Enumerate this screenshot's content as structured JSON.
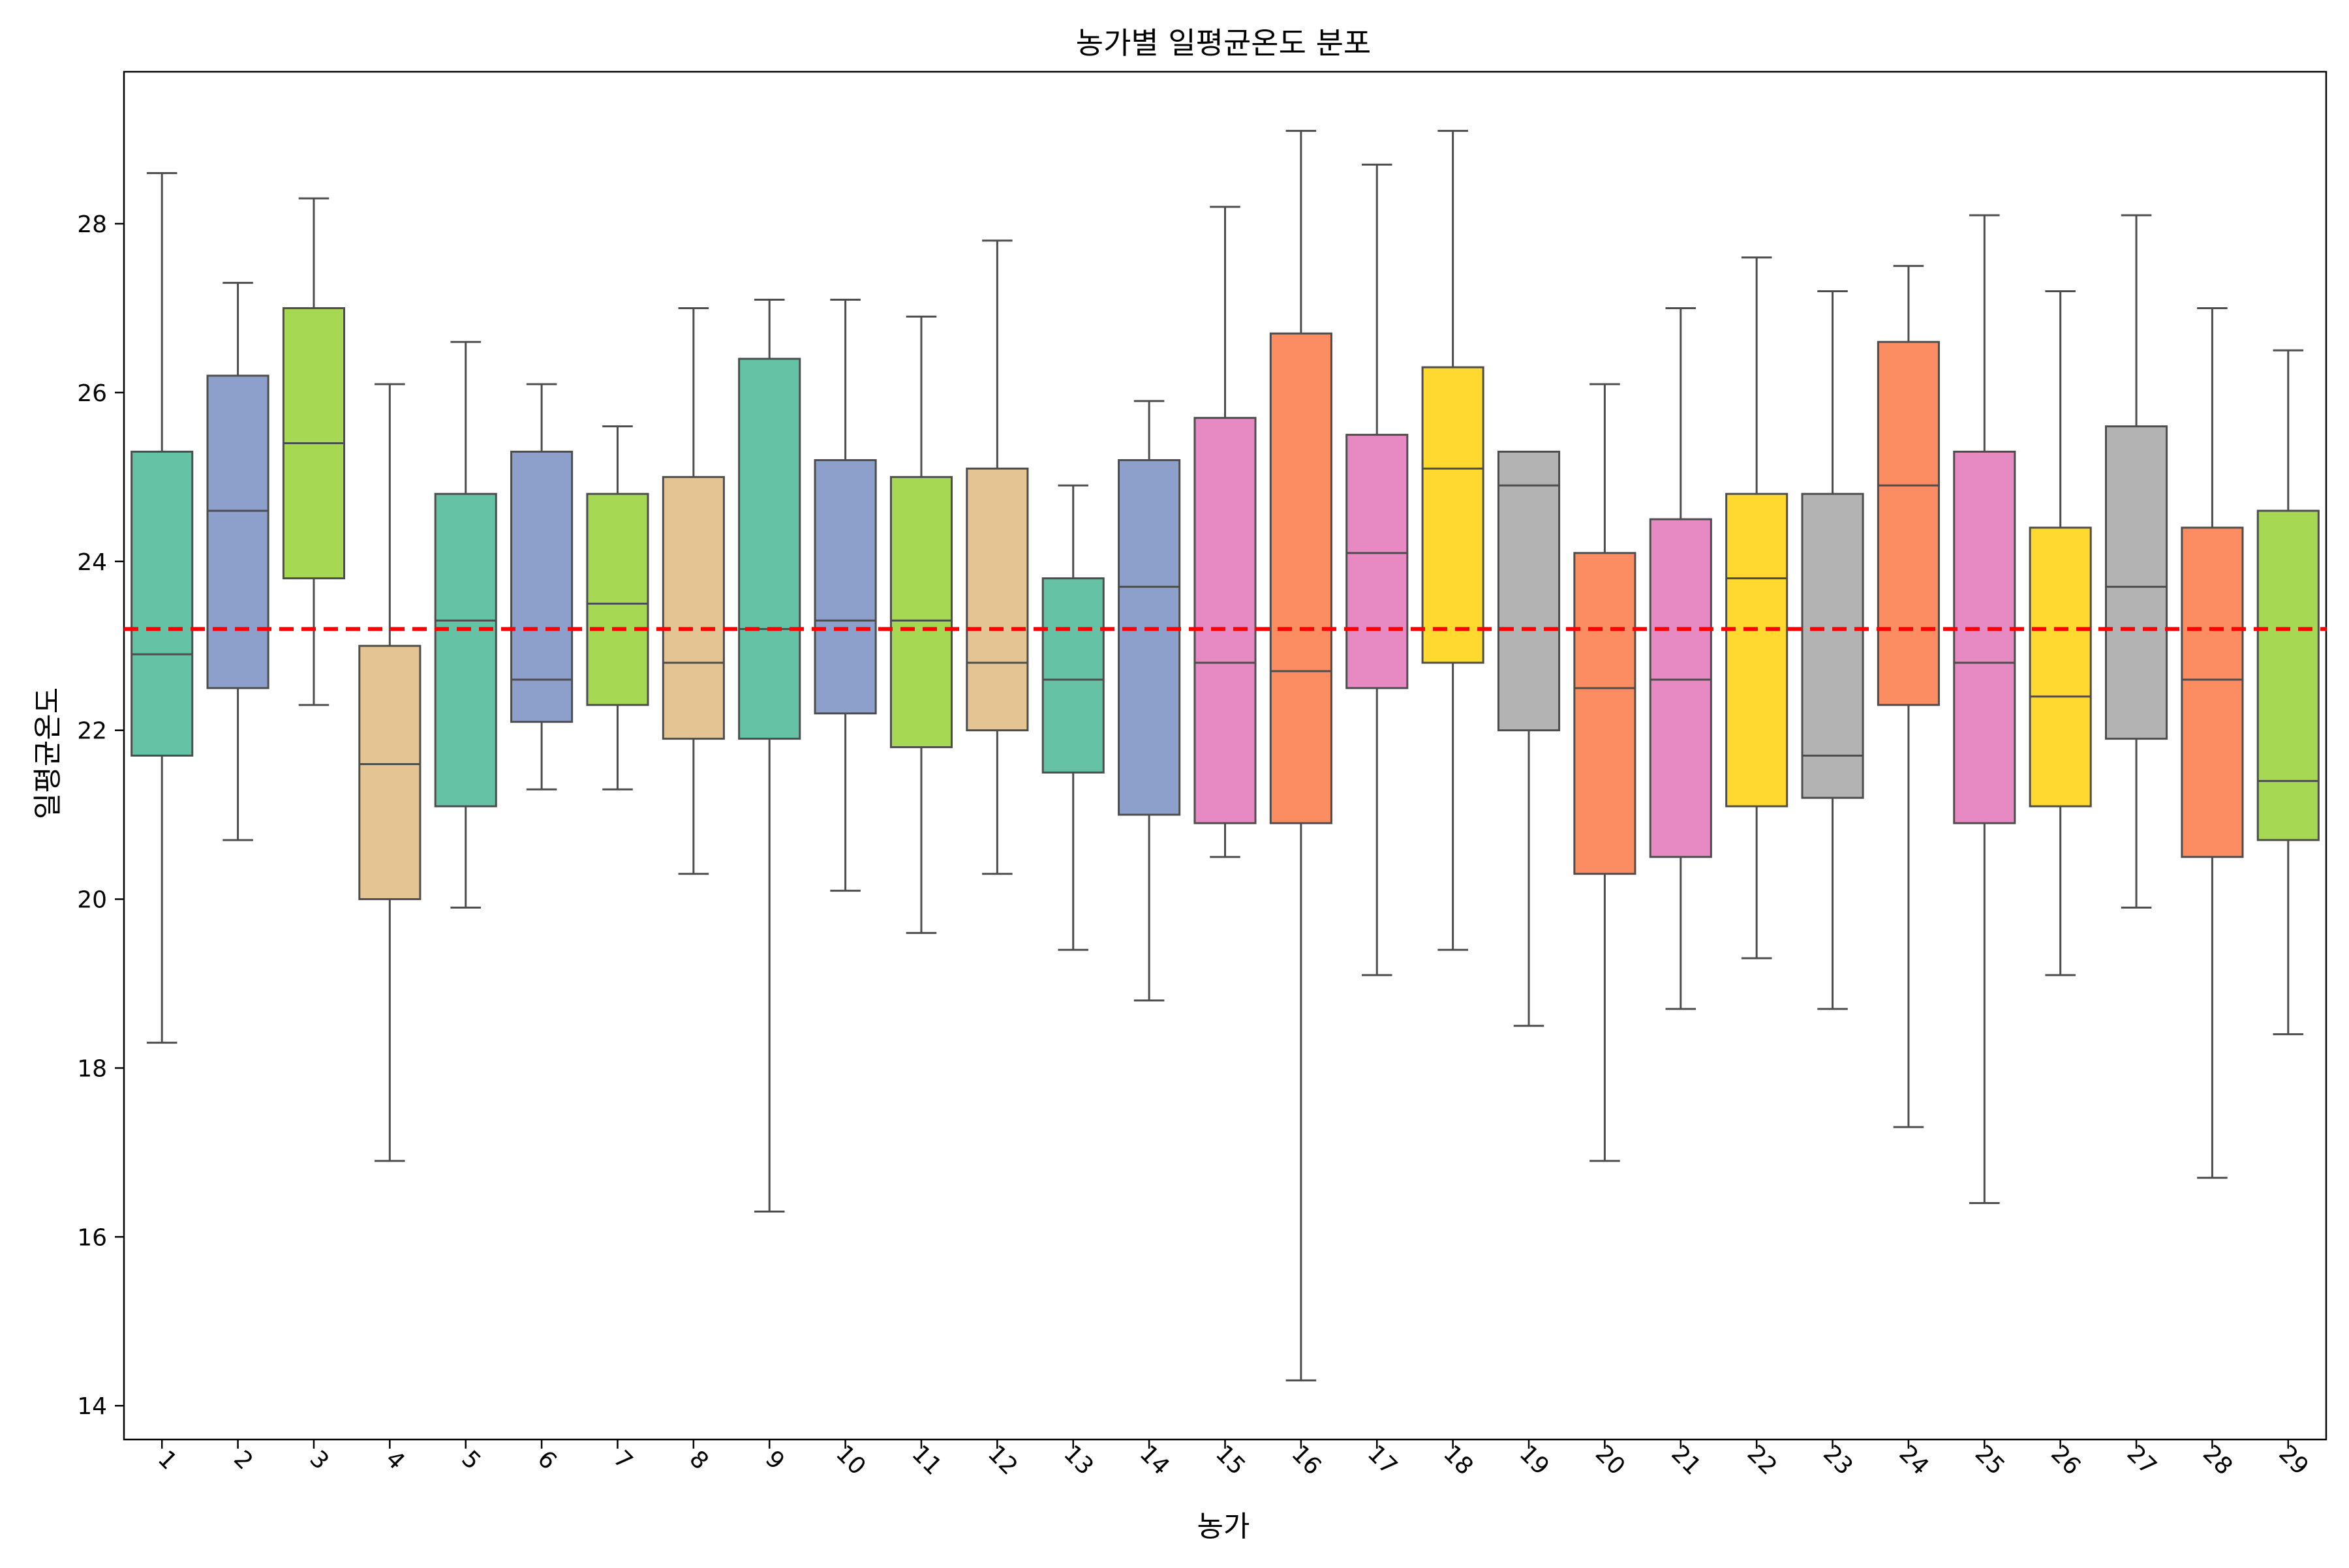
{
  "chart_data": {
    "type": "box",
    "title": "농가별 일평균온도 분포",
    "xlabel": "농가",
    "ylabel": "일평균온도",
    "ylim": [
      13.6,
      29.8
    ],
    "yticks": [
      14,
      16,
      18,
      20,
      22,
      24,
      26,
      28
    ],
    "grid": false,
    "legend": "none",
    "reference_line": {
      "value": 23.2,
      "color": "#ff0000",
      "style": "dashed"
    },
    "categories": [
      "1",
      "2",
      "3",
      "4",
      "5",
      "6",
      "7",
      "8",
      "9",
      "10",
      "11",
      "12",
      "13",
      "14",
      "15",
      "16",
      "17",
      "18",
      "19",
      "20",
      "21",
      "22",
      "23",
      "24",
      "25",
      "26",
      "27",
      "28",
      "29"
    ],
    "boxes": [
      {
        "min": 18.3,
        "q1": 21.7,
        "median": 22.9,
        "q3": 25.3,
        "max": 28.6
      },
      {
        "min": 20.7,
        "q1": 22.5,
        "median": 24.6,
        "q3": 26.2,
        "max": 27.3
      },
      {
        "min": 22.3,
        "q1": 23.8,
        "median": 25.4,
        "q3": 27.0,
        "max": 28.3
      },
      {
        "min": 16.9,
        "q1": 20.0,
        "median": 21.6,
        "q3": 23.0,
        "max": 26.1
      },
      {
        "min": 19.9,
        "q1": 21.1,
        "median": 23.3,
        "q3": 24.8,
        "max": 26.6
      },
      {
        "min": 21.3,
        "q1": 22.1,
        "median": 22.6,
        "q3": 25.3,
        "max": 26.1
      },
      {
        "min": 21.3,
        "q1": 22.3,
        "median": 23.5,
        "q3": 24.8,
        "max": 25.6
      },
      {
        "min": 20.3,
        "q1": 21.9,
        "median": 22.8,
        "q3": 25.0,
        "max": 27.0
      },
      {
        "min": 16.3,
        "q1": 21.9,
        "median": 23.2,
        "q3": 26.4,
        "max": 27.1
      },
      {
        "min": 20.1,
        "q1": 22.2,
        "median": 23.3,
        "q3": 25.2,
        "max": 27.1
      },
      {
        "min": 19.6,
        "q1": 21.8,
        "median": 23.3,
        "q3": 25.0,
        "max": 26.9
      },
      {
        "min": 20.3,
        "q1": 22.0,
        "median": 22.8,
        "q3": 25.1,
        "max": 27.8
      },
      {
        "min": 19.4,
        "q1": 21.5,
        "median": 22.6,
        "q3": 23.8,
        "max": 24.9
      },
      {
        "min": 18.8,
        "q1": 21.0,
        "median": 23.7,
        "q3": 25.2,
        "max": 25.9
      },
      {
        "min": 20.5,
        "q1": 20.9,
        "median": 22.8,
        "q3": 25.7,
        "max": 28.2
      },
      {
        "min": 14.3,
        "q1": 20.9,
        "median": 22.7,
        "q3": 26.7,
        "max": 29.1
      },
      {
        "min": 19.1,
        "q1": 22.5,
        "median": 24.1,
        "q3": 25.5,
        "max": 28.7
      },
      {
        "min": 19.4,
        "q1": 22.8,
        "median": 25.1,
        "q3": 26.3,
        "max": 29.1
      },
      {
        "min": 18.5,
        "q1": 22.0,
        "median": 24.9,
        "q3": 25.3,
        "max": 25.3
      },
      {
        "min": 16.9,
        "q1": 20.3,
        "median": 22.5,
        "q3": 24.1,
        "max": 26.1
      },
      {
        "min": 18.7,
        "q1": 20.5,
        "median": 22.6,
        "q3": 24.5,
        "max": 27.0
      },
      {
        "min": 19.3,
        "q1": 21.1,
        "median": 23.8,
        "q3": 24.8,
        "max": 27.6
      },
      {
        "min": 18.7,
        "q1": 21.2,
        "median": 21.7,
        "q3": 24.8,
        "max": 27.2
      },
      {
        "min": 17.3,
        "q1": 22.3,
        "median": 24.9,
        "q3": 26.6,
        "max": 27.5
      },
      {
        "min": 16.4,
        "q1": 20.9,
        "median": 22.8,
        "q3": 25.3,
        "max": 28.1
      },
      {
        "min": 19.1,
        "q1": 21.1,
        "median": 22.4,
        "q3": 24.4,
        "max": 27.2
      },
      {
        "min": 19.9,
        "q1": 21.9,
        "median": 23.7,
        "q3": 25.6,
        "max": 28.1
      },
      {
        "min": 16.7,
        "q1": 20.5,
        "median": 22.6,
        "q3": 24.4,
        "max": 27.0
      },
      {
        "min": 18.4,
        "q1": 20.7,
        "median": 21.4,
        "q3": 24.6,
        "max": 26.5
      }
    ],
    "palette": [
      "#66c2a5",
      "#8da0cb",
      "#a6d854",
      "#e5c494",
      "#66c2a5",
      "#8da0cb",
      "#a6d854",
      "#e5c494",
      "#66c2a5",
      "#8da0cb",
      "#a6d854",
      "#e5c494",
      "#66c2a5",
      "#8da0cb",
      "#e78ac3",
      "#fc8d62",
      "#e78ac3",
      "#ffd92f",
      "#b3b3b3",
      "#fc8d62",
      "#e78ac3",
      "#ffd92f",
      "#b3b3b3",
      "#fc8d62",
      "#e78ac3",
      "#ffd92f",
      "#b3b3b3",
      "#fc8d62",
      "#a6d854"
    ]
  }
}
